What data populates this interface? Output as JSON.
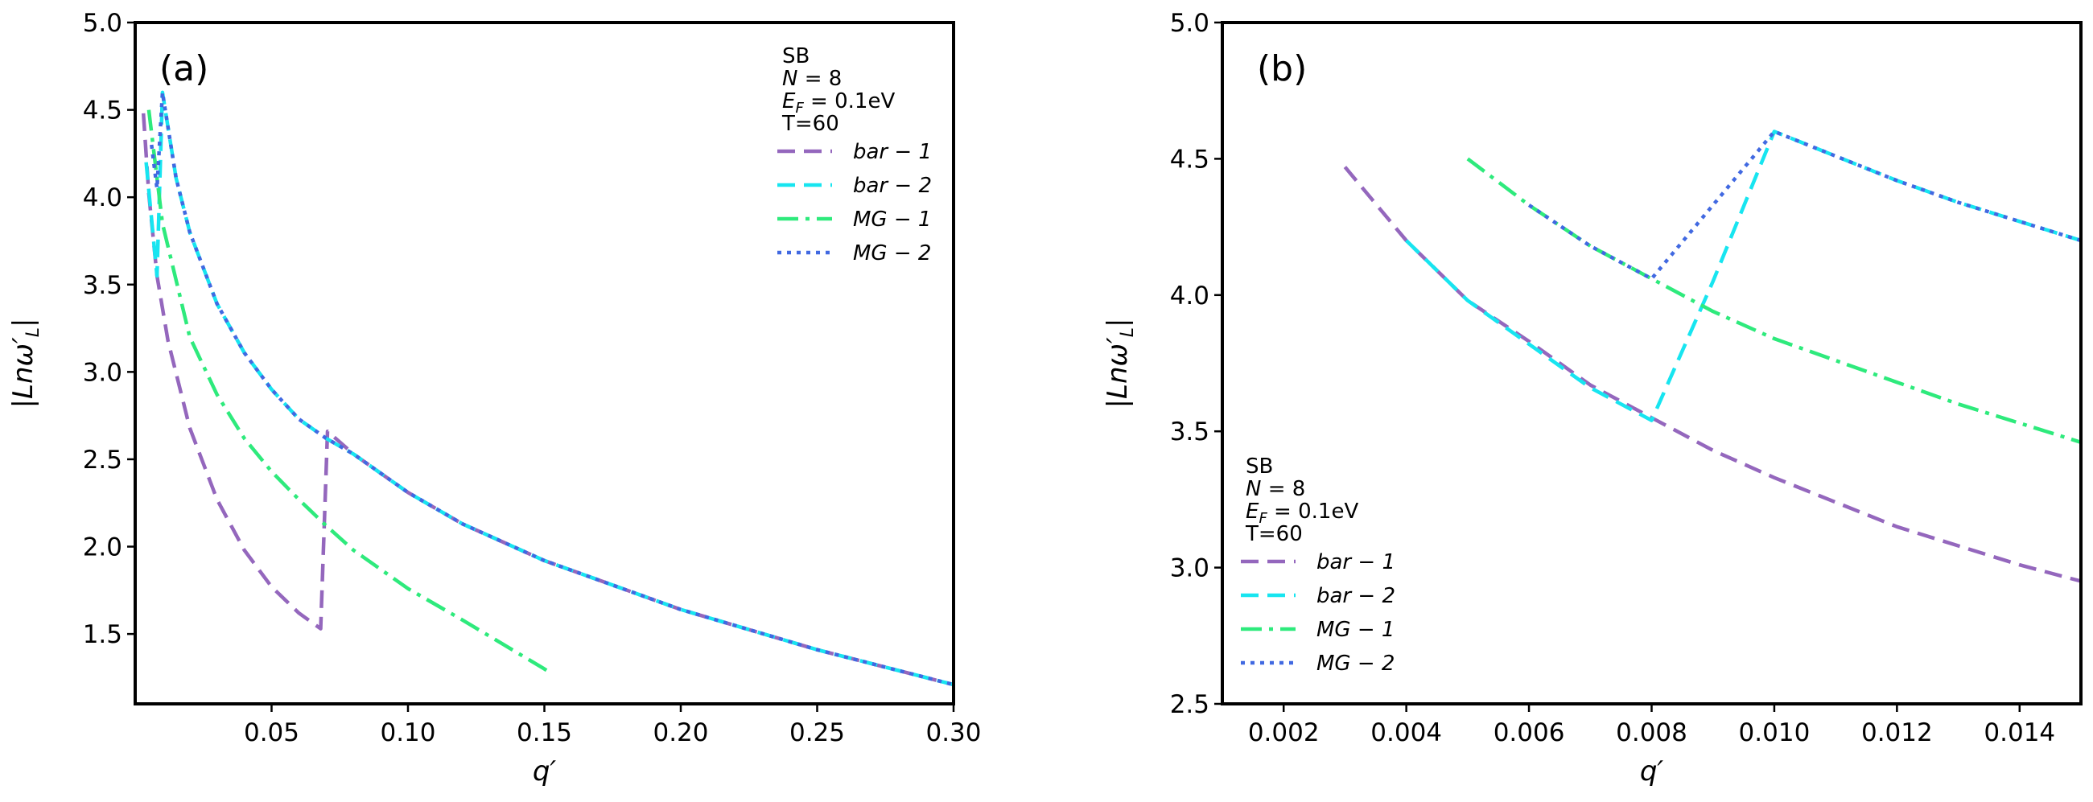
{
  "chart_data": [
    {
      "type": "line",
      "panel_label": "(a)",
      "xlabel": "q′",
      "ylabel": "|Lnω′L|",
      "xlim": [
        0.0,
        0.3
      ],
      "ylim": [
        1.1,
        5.0
      ],
      "xticks": [
        0.05,
        0.1,
        0.15,
        0.2,
        0.25,
        0.3
      ],
      "xtick_labels": [
        "0.05",
        "0.10",
        "0.15",
        "0.20",
        "0.25",
        "0.30"
      ],
      "yticks": [
        1.5,
        2.0,
        2.5,
        3.0,
        3.5,
        4.0,
        4.5,
        5.0
      ],
      "ytick_labels": [
        "1.5",
        "2.0",
        "2.5",
        "3.0",
        "3.5",
        "4.0",
        "4.5",
        "5.0"
      ],
      "legend_header": [
        "SB",
        "N = 8",
        "EF = 0.1eV",
        "T=60"
      ],
      "legend_position": "top-right",
      "series": [
        {
          "name": "bar − 1",
          "color": "#9467bd",
          "dash": "dashed",
          "x": [
            0.003,
            0.005,
            0.008,
            0.012,
            0.02,
            0.03,
            0.04,
            0.05,
            0.06,
            0.068,
            0.0705,
            0.08,
            0.1,
            0.12,
            0.15,
            0.2,
            0.25,
            0.3
          ],
          "y": [
            4.48,
            4.02,
            3.55,
            3.18,
            2.68,
            2.27,
            1.98,
            1.77,
            1.62,
            1.53,
            2.66,
            2.53,
            2.31,
            2.13,
            1.92,
            1.64,
            1.41,
            1.21
          ]
        },
        {
          "name": "bar − 2",
          "color": "#17e5f0",
          "dash": "dashed",
          "x": [
            0.004,
            0.008,
            0.01,
            0.015,
            0.02,
            0.03,
            0.04,
            0.05,
            0.06,
            0.07,
            0.08,
            0.1,
            0.12,
            0.15,
            0.2,
            0.25,
            0.3
          ],
          "y": [
            4.2,
            3.55,
            4.6,
            4.11,
            3.8,
            3.39,
            3.11,
            2.9,
            2.73,
            2.62,
            2.53,
            2.31,
            2.13,
            1.92,
            1.64,
            1.41,
            1.21
          ]
        },
        {
          "name": "MG − 1",
          "color": "#2eea7c",
          "dash": "dashdot",
          "x": [
            0.005,
            0.01,
            0.02,
            0.03,
            0.04,
            0.05,
            0.06,
            0.07,
            0.08,
            0.1,
            0.12,
            0.15,
            0.153
          ],
          "y": [
            4.5,
            3.85,
            3.2,
            2.87,
            2.62,
            2.43,
            2.27,
            2.12,
            1.98,
            1.76,
            1.58,
            1.3,
            1.27
          ]
        },
        {
          "name": "MG − 2",
          "color": "#4169e1",
          "dash": "dotted",
          "x": [
            0.006,
            0.008,
            0.01,
            0.015,
            0.02,
            0.03,
            0.04,
            0.05,
            0.06,
            0.07,
            0.08,
            0.1,
            0.12,
            0.15,
            0.2,
            0.25,
            0.3
          ],
          "y": [
            4.3,
            4.05,
            4.6,
            4.11,
            3.8,
            3.39,
            3.11,
            2.9,
            2.73,
            2.62,
            2.53,
            2.31,
            2.13,
            1.92,
            1.64,
            1.41,
            1.21
          ]
        }
      ]
    },
    {
      "type": "line",
      "panel_label": "(b)",
      "xlabel": "q′",
      "ylabel": "|Lnω′L|",
      "xlim": [
        0.001,
        0.015
      ],
      "ylim": [
        2.5,
        5.0
      ],
      "xticks": [
        0.002,
        0.004,
        0.006,
        0.008,
        0.01,
        0.012,
        0.014
      ],
      "xtick_labels": [
        "0.002",
        "0.004",
        "0.006",
        "0.008",
        "0.010",
        "0.012",
        "0.014"
      ],
      "yticks": [
        2.5,
        3.0,
        3.5,
        4.0,
        4.5,
        5.0
      ],
      "ytick_labels": [
        "2.5",
        "3.0",
        "3.5",
        "4.0",
        "4.5",
        "5.0"
      ],
      "legend_header": [
        "SB",
        "N = 8",
        "EF = 0.1eV",
        "T=60"
      ],
      "legend_position": "bottom-left",
      "series": [
        {
          "name": "bar − 1",
          "color": "#9467bd",
          "dash": "dashed",
          "x": [
            0.003,
            0.004,
            0.005,
            0.006,
            0.007,
            0.008,
            0.009,
            0.01,
            0.011,
            0.012,
            0.013,
            0.014,
            0.015
          ],
          "y": [
            4.47,
            4.2,
            3.98,
            3.83,
            3.67,
            3.55,
            3.43,
            3.33,
            3.24,
            3.15,
            3.08,
            3.01,
            2.95
          ]
        },
        {
          "name": "bar − 2",
          "color": "#17e5f0",
          "dash": "dashed",
          "x": [
            0.004,
            0.005,
            0.006,
            0.007,
            0.008,
            0.009,
            0.01,
            0.011,
            0.012,
            0.013,
            0.014,
            0.015
          ],
          "y": [
            4.2,
            3.98,
            3.82,
            3.66,
            3.54,
            4.05,
            4.6,
            4.51,
            4.42,
            4.34,
            4.27,
            4.2
          ]
        },
        {
          "name": "MG − 1",
          "color": "#2eea7c",
          "dash": "dashdot",
          "x": [
            0.005,
            0.006,
            0.007,
            0.008,
            0.009,
            0.01,
            0.011,
            0.012,
            0.013,
            0.014,
            0.015
          ],
          "y": [
            4.5,
            4.33,
            4.18,
            4.06,
            3.94,
            3.84,
            3.76,
            3.68,
            3.6,
            3.53,
            3.46
          ]
        },
        {
          "name": "MG − 2",
          "color": "#4169e1",
          "dash": "dotted",
          "x": [
            0.006,
            0.007,
            0.008,
            0.009,
            0.01,
            0.011,
            0.012,
            0.013,
            0.014,
            0.015
          ],
          "y": [
            4.33,
            4.18,
            4.06,
            4.33,
            4.6,
            4.51,
            4.42,
            4.34,
            4.27,
            4.2
          ]
        }
      ]
    }
  ]
}
